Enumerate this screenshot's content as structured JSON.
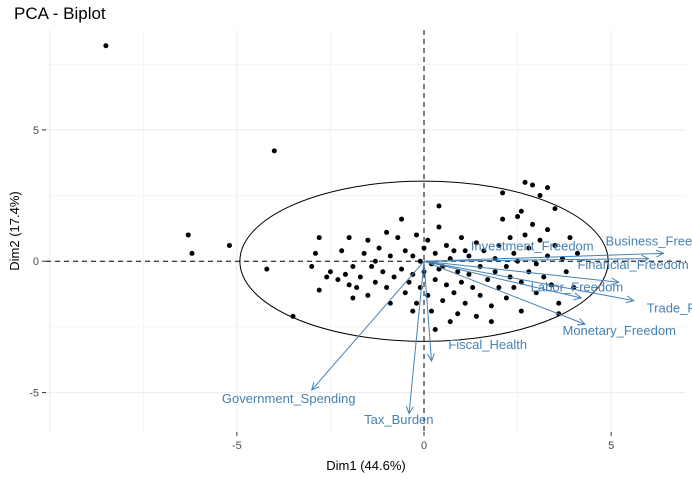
{
  "chart_data": {
    "type": "scatter",
    "title": "PCA - Biplot",
    "xlabel": "Dim1 (44.6%)",
    "ylabel": "Dim2 (17.4%)",
    "xlim": [
      -10.1,
      7.0
    ],
    "ylim": [
      -6.5,
      8.8
    ],
    "xticks": [
      -5,
      0,
      5
    ],
    "yticks": [
      -5,
      0,
      5
    ],
    "grid": true,
    "colors": {
      "points": "#000000",
      "vectors": "#4682B4",
      "grid": "#ebebeb"
    },
    "ellipse": {
      "cx": 0,
      "cy": 0,
      "rx": 4.92,
      "ry": 3.05
    },
    "points": [
      [
        -8.5,
        8.2
      ],
      [
        -4.0,
        4.2
      ],
      [
        -6.3,
        1.0
      ],
      [
        -6.2,
        0.3
      ],
      [
        -5.2,
        0.6
      ],
      [
        -4.2,
        -0.3
      ],
      [
        -3.5,
        -2.1
      ],
      [
        -2.8,
        0.9
      ],
      [
        -2.9,
        0.3
      ],
      [
        -2.2,
        0.4
      ],
      [
        -2.0,
        0.9
      ],
      [
        -3.0,
        -0.2
      ],
      [
        -2.5,
        -0.4
      ],
      [
        -2.6,
        -0.6
      ],
      [
        -2.3,
        -0.7
      ],
      [
        -2.1,
        -0.5
      ],
      [
        -2.0,
        -0.9
      ],
      [
        -1.9,
        -0.2
      ],
      [
        -1.8,
        -1.0
      ],
      [
        -1.7,
        -0.6
      ],
      [
        -1.5,
        0.8
      ],
      [
        -1.6,
        0.3
      ],
      [
        -1.4,
        -0.2
      ],
      [
        -1.5,
        -1.3
      ],
      [
        -1.3,
        -0.8
      ],
      [
        -1.2,
        0.5
      ],
      [
        -1.1,
        -0.4
      ],
      [
        -1.0,
        1.1
      ],
      [
        -1.0,
        -1.0
      ],
      [
        -0.9,
        0.2
      ],
      [
        -0.8,
        -0.6
      ],
      [
        -0.7,
        0.9
      ],
      [
        -0.6,
        1.6
      ],
      [
        -0.6,
        -0.3
      ],
      [
        -0.5,
        0.4
      ],
      [
        -0.5,
        -1.2
      ],
      [
        -0.4,
        -0.8
      ],
      [
        -0.3,
        0.2
      ],
      [
        -0.3,
        -0.5
      ],
      [
        -0.2,
        1.0
      ],
      [
        -0.2,
        -1.6
      ],
      [
        -0.1,
        0.0
      ],
      [
        -0.1,
        -1.0
      ],
      [
        0.0,
        0.5
      ],
      [
        0.0,
        -0.4
      ],
      [
        0.1,
        -1.3
      ],
      [
        0.1,
        0.8
      ],
      [
        0.2,
        -0.1
      ],
      [
        0.2,
        -1.9
      ],
      [
        0.3,
        0.3
      ],
      [
        0.3,
        -0.7
      ],
      [
        0.4,
        2.1
      ],
      [
        0.4,
        1.3
      ],
      [
        0.5,
        -0.2
      ],
      [
        0.5,
        -1.5
      ],
      [
        0.6,
        0.6
      ],
      [
        0.6,
        -0.9
      ],
      [
        0.7,
        0.1
      ],
      [
        0.7,
        -2.3
      ],
      [
        0.8,
        0.4
      ],
      [
        0.8,
        -1.2
      ],
      [
        0.9,
        -0.4
      ],
      [
        1.0,
        0.9
      ],
      [
        1.0,
        -0.8
      ],
      [
        1.1,
        -1.6
      ],
      [
        1.2,
        0.2
      ],
      [
        1.2,
        -0.5
      ],
      [
        1.3,
        -1.0
      ],
      [
        1.4,
        0.7
      ],
      [
        1.5,
        -0.2
      ],
      [
        1.5,
        -1.3
      ],
      [
        1.6,
        0.4
      ],
      [
        1.7,
        -0.7
      ],
      [
        1.8,
        -1.7
      ],
      [
        1.8,
        -2.3
      ],
      [
        1.9,
        0.1
      ],
      [
        1.9,
        -0.4
      ],
      [
        2.0,
        0.6
      ],
      [
        2.0,
        -1.0
      ],
      [
        2.1,
        2.6
      ],
      [
        2.1,
        1.6
      ],
      [
        2.2,
        -0.2
      ],
      [
        2.2,
        -1.4
      ],
      [
        2.3,
        0.9
      ],
      [
        2.3,
        -0.6
      ],
      [
        2.4,
        0.3
      ],
      [
        2.4,
        -1.0
      ],
      [
        2.5,
        1.7
      ],
      [
        2.5,
        0.0
      ],
      [
        2.6,
        -0.8
      ],
      [
        2.6,
        -1.9
      ],
      [
        2.7,
        1.0
      ],
      [
        2.7,
        3.0
      ],
      [
        2.8,
        0.5
      ],
      [
        2.8,
        -0.4
      ],
      [
        2.9,
        2.9
      ],
      [
        2.9,
        1.4
      ],
      [
        3.0,
        -0.1
      ],
      [
        3.0,
        -1.2
      ],
      [
        3.1,
        2.5
      ],
      [
        3.1,
        0.8
      ],
      [
        3.2,
        -0.6
      ],
      [
        3.3,
        0.2
      ],
      [
        3.3,
        1.2
      ],
      [
        3.4,
        -0.9
      ],
      [
        3.5,
        0.6
      ],
      [
        3.5,
        2.0
      ],
      [
        3.6,
        -1.6
      ],
      [
        3.6,
        -2.0
      ],
      [
        3.7,
        0.1
      ],
      [
        3.8,
        -0.4
      ],
      [
        3.9,
        0.9
      ],
      [
        4.0,
        -1.0
      ],
      [
        4.1,
        0.3
      ],
      [
        3.3,
        2.8
      ],
      [
        2.6,
        1.9
      ],
      [
        -0.3,
        -1.9
      ],
      [
        -2.8,
        -1.1
      ],
      [
        1.4,
        -2.1
      ],
      [
        0.9,
        -2.0
      ],
      [
        -1.9,
        -1.4
      ],
      [
        -0.9,
        -1.6
      ],
      [
        0.3,
        -2.6
      ],
      [
        1.1,
        0.4
      ],
      [
        -1.3,
        0.0
      ],
      [
        0.4,
        -0.3
      ]
    ],
    "vectors": [
      {
        "label": "Business_Freedom",
        "x": 6.4,
        "y": 0.3,
        "label_x": 4.85,
        "label_y": 0.6
      },
      {
        "label": "Investment_Freedom",
        "x": 6.0,
        "y": 0.1,
        "label_x": 1.25,
        "label_y": 0.4
      },
      {
        "label": "Financial_Freedom",
        "x": 5.2,
        "y": -0.8,
        "label_x": 4.1,
        "label_y": -0.3
      },
      {
        "label": "Labor_Freedom",
        "x": 4.2,
        "y": -1.4,
        "label_x": 2.85,
        "label_y": -1.15
      },
      {
        "label": "Trade_Freedom",
        "x": 5.6,
        "y": -1.5,
        "label_x": 5.95,
        "label_y": -1.95
      },
      {
        "label": "Monetary_Freedom",
        "x": 4.3,
        "y": -2.4,
        "label_x": 3.7,
        "label_y": -2.8
      },
      {
        "label": "Fiscal_Health",
        "x": 0.2,
        "y": -3.8,
        "label_x": 0.65,
        "label_y": -3.35
      },
      {
        "label": "Government_Spending",
        "x": -3.0,
        "y": -4.9,
        "label_x": -5.4,
        "label_y": -5.4
      },
      {
        "label": "Tax_Burden",
        "x": -0.4,
        "y": -5.8,
        "label_x": -1.6,
        "label_y": -6.2
      }
    ]
  }
}
